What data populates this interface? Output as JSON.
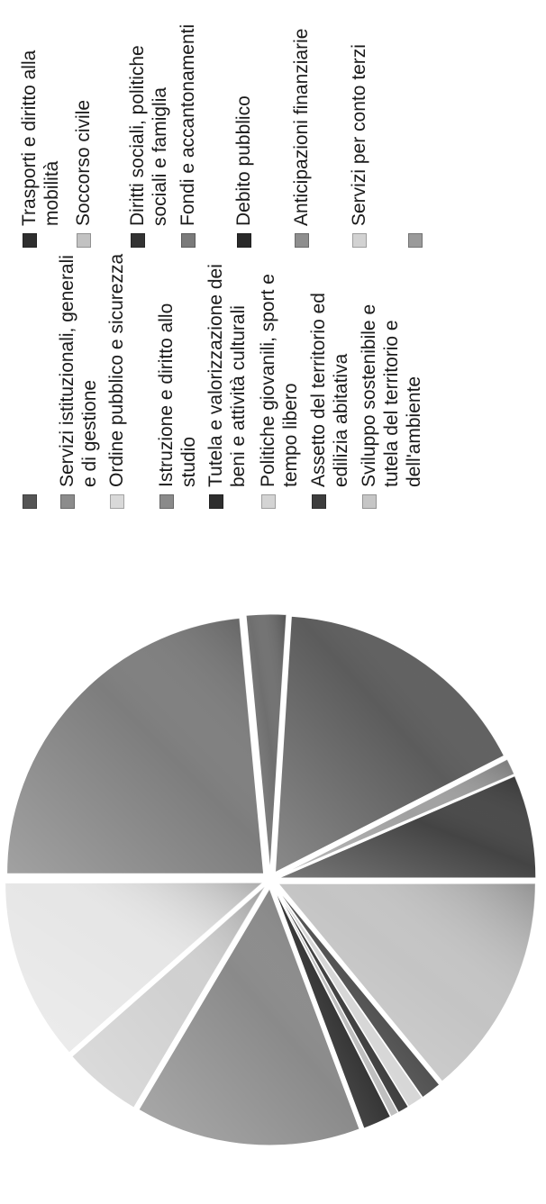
{
  "chart_data": {
    "type": "pie",
    "title": "",
    "legend_position": "right",
    "slices": [
      {
        "label": "",
        "value": 23.5,
        "color": "#7d7d7d"
      },
      {
        "label": "Servizi istituzionali, generali e di gestione",
        "value": 2.5,
        "color": "#6f6f6f"
      },
      {
        "label": "Ordine pubblico e sicurezza",
        "value": 16.5,
        "color": "#5c5c5c"
      },
      {
        "label": "Istruzione e diritto allo studio",
        "value": 1.0,
        "color": "#a0a0a0"
      },
      {
        "label": "Tutela e valorizzazione dei beni e attività culturali",
        "value": 6.5,
        "color": "#444444"
      },
      {
        "label": "Politiche giovanili, sport e tempo libero",
        "value": 14.0,
        "color": "#c4c4c4"
      },
      {
        "label": "Assetto del territorio ed edilizia abitativa",
        "value": 1.3,
        "color": "#505050"
      },
      {
        "label": "Sviluppo sostenibile e tutela del territorio e dell'ambiente",
        "value": 1.0,
        "color": "#d6d6d6"
      },
      {
        "label": "Trasporti e diritto alla mobilità",
        "value": 0.7,
        "color": "#3c3c3c"
      },
      {
        "label": "Soccorso civile",
        "value": 0.5,
        "color": "#bdbdbd"
      },
      {
        "label": "Diritti sociali, politiche sociali e famiglia",
        "value": 1.8,
        "color": "#333333"
      },
      {
        "label": "Fondi e accantonamenti",
        "value": 14.2,
        "color": "#8a8a8a"
      },
      {
        "label": "Debito pubblico",
        "value": 5.0,
        "color": "#d0d0d0"
      },
      {
        "label": "Anticipazioni finanziarie",
        "value": 11.5,
        "color": "#e6e6e6"
      }
    ]
  },
  "legend": {
    "col1": [
      {
        "label": "",
        "color": "#555555"
      },
      {
        "label": "Servizi istituzionali, generali e di gestione",
        "color": "#8c8c8c"
      },
      {
        "label": "Ordine pubblico e sicurezza",
        "color": "#d9d9d9"
      },
      {
        "label": "Istruzione e diritto allo studio",
        "color": "#8a8a8a"
      },
      {
        "label": "Tutela e valorizzazione dei beni e attività culturali",
        "color": "#2e2e2e"
      },
      {
        "label": "Politiche giovanili, sport e tempo libero",
        "color": "#d4d4d4"
      },
      {
        "label": "Assetto del territorio ed edilizia abitativa",
        "color": "#3d3d3d"
      },
      {
        "label": "Sviluppo sostenibile e tutela del territorio e dell'ambiente",
        "color": "#c6c6c6"
      }
    ],
    "col2": [
      {
        "label": "Trasporti e diritto alla mobilità",
        "color": "#2f2f2f"
      },
      {
        "label": "Soccorso civile",
        "color": "#c2c2c2"
      },
      {
        "label": "Diritti sociali, politiche sociali e famiglia",
        "color": "#333333"
      },
      {
        "label": "Fondi e accantonamenti",
        "color": "#7a7a7a"
      },
      {
        "label": "Debito pubblico",
        "color": "#2a2a2a"
      },
      {
        "label": "Anticipazioni finanziarie",
        "color": "#8e8e8e"
      },
      {
        "label": "Servizi per conto terzi",
        "color": "#d2d2d2"
      },
      {
        "label": "",
        "color": "#9a9a9a"
      }
    ]
  }
}
